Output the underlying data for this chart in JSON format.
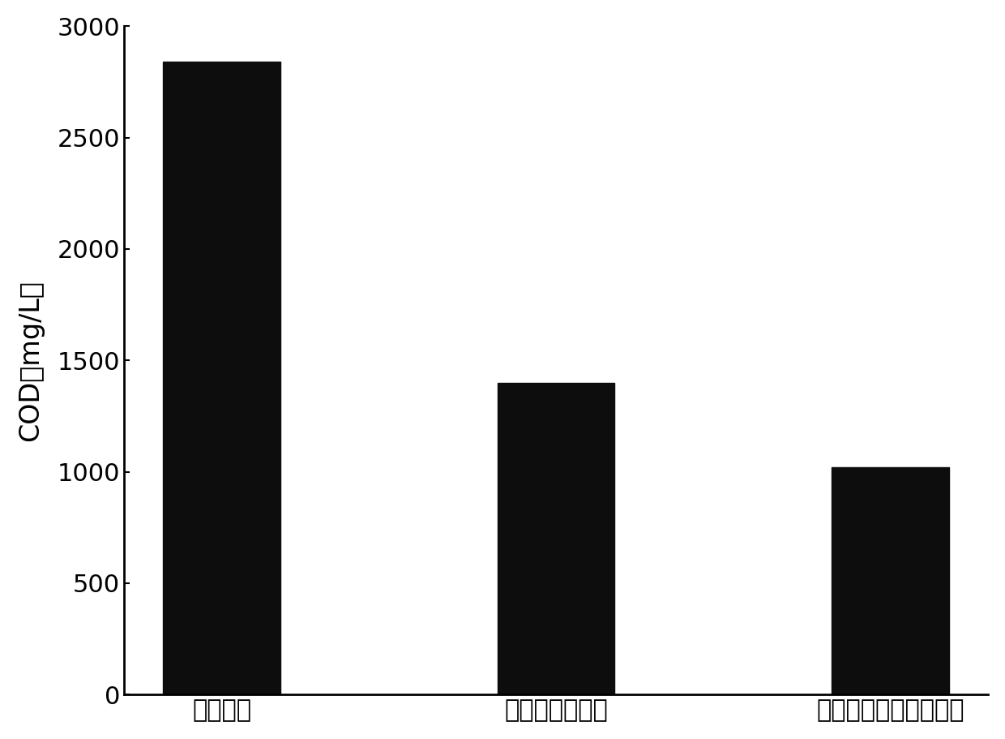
{
  "categories": [
    "初始浓度",
    "固定化菌藻处理",
    "生物炭固定化菌藻处理"
  ],
  "values": [
    2840,
    1400,
    1020
  ],
  "bar_color": "#0d0d0d",
  "ylabel": "COD（mg/L）",
  "ylim": [
    0,
    3000
  ],
  "yticks": [
    0,
    500,
    1000,
    1500,
    2000,
    2500,
    3000
  ],
  "background_color": "#ffffff",
  "bar_width": 0.35,
  "ylabel_fontsize": 24,
  "tick_fontsize": 22,
  "xlabel_fontsize": 22,
  "spine_linewidth": 2.0
}
